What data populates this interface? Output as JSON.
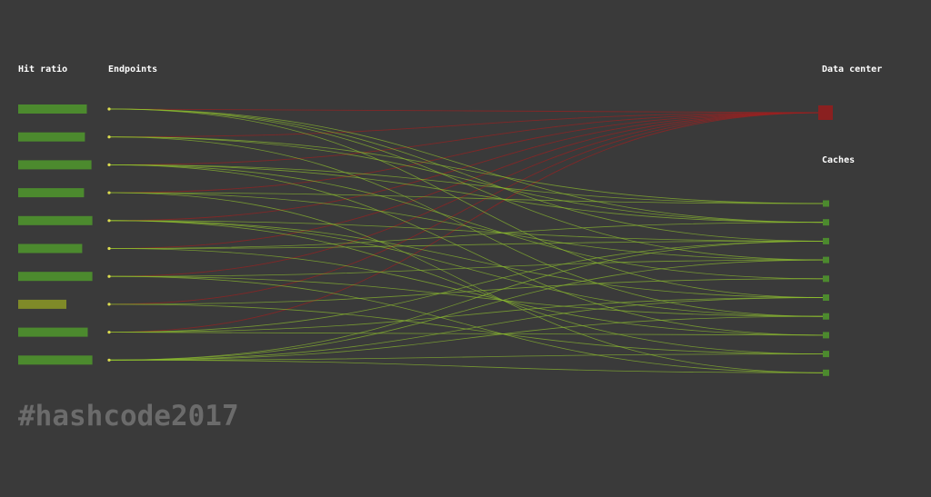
{
  "headers": {
    "hit_ratio": "Hit ratio",
    "endpoints": "Endpoints",
    "data_center": "Data center",
    "caches": "Caches"
  },
  "footer": {
    "hashtag": "#hashcode2017"
  },
  "colors": {
    "background": "#3a3a3a",
    "bar_green": "#4c8a2e",
    "bar_olive": "#7f8a28",
    "endpoint_dot": "#dede50",
    "cache_node": "#4c8a2e",
    "data_center_node": "#8a2020",
    "dc_link": "#9a2222",
    "cache_link": "#8fbf2f",
    "footer_text": "#6b6b6b"
  },
  "hit_ratios": [
    0.74,
    0.72,
    0.79,
    0.71,
    0.8,
    0.69,
    0.8,
    0.52,
    0.75,
    0.8
  ],
  "cache_count": 10,
  "dc_links": [
    0,
    1,
    2,
    3,
    4,
    5,
    6,
    7,
    8
  ],
  "cache_links": [
    [
      0,
      1
    ],
    [
      0,
      2
    ],
    [
      0,
      3
    ],
    [
      0,
      5
    ],
    [
      1,
      0
    ],
    [
      1,
      1
    ],
    [
      1,
      6
    ],
    [
      2,
      0
    ],
    [
      2,
      1
    ],
    [
      2,
      4
    ],
    [
      2,
      7
    ],
    [
      3,
      0
    ],
    [
      3,
      3
    ],
    [
      3,
      9
    ],
    [
      4,
      2
    ],
    [
      4,
      5
    ],
    [
      4,
      6
    ],
    [
      4,
      8
    ],
    [
      5,
      1
    ],
    [
      5,
      2
    ],
    [
      5,
      7
    ],
    [
      6,
      3
    ],
    [
      6,
      6
    ],
    [
      6,
      9
    ],
    [
      7,
      4
    ],
    [
      7,
      8
    ],
    [
      8,
      2
    ],
    [
      8,
      5
    ],
    [
      8,
      7
    ],
    [
      9,
      2
    ],
    [
      9,
      3
    ],
    [
      9,
      5
    ],
    [
      9,
      6
    ],
    [
      9,
      8
    ],
    [
      9,
      9
    ]
  ]
}
